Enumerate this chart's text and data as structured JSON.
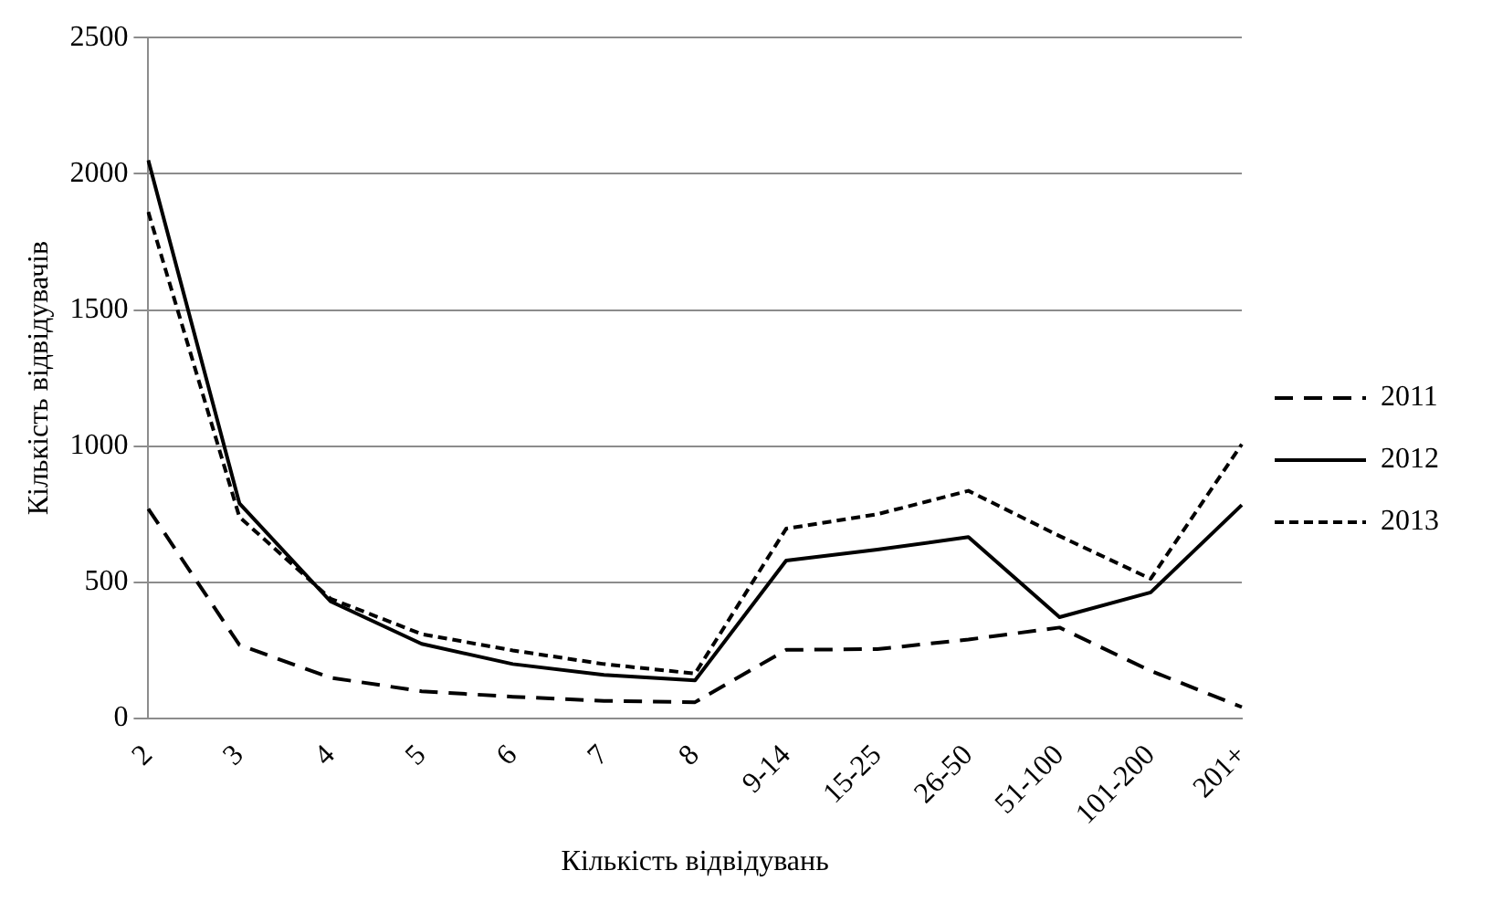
{
  "chart_data": {
    "type": "line",
    "xlabel": "Кількість відвідувань",
    "ylabel": "Кількість відвідувачів",
    "categories": [
      "2",
      "3",
      "4",
      "5",
      "6",
      "7",
      "8",
      "9-14",
      "15-25",
      "26-50",
      "51-100",
      "101-200",
      "201+"
    ],
    "series": [
      {
        "name": "2011",
        "color": "#000000",
        "line_style": "dashed",
        "values": [
          770,
          270,
          150,
          100,
          80,
          65,
          60,
          252,
          255,
          290,
          334,
          175,
          42
        ]
      },
      {
        "name": "2012",
        "color": "#000000",
        "line_style": "solid",
        "values": [
          2050,
          790,
          430,
          274,
          200,
          160,
          140,
          580,
          620,
          666,
          372,
          463,
          784
        ]
      },
      {
        "name": "2013",
        "color": "#000000",
        "line_style": "dotted",
        "values": [
          1860,
          740,
          440,
          310,
          250,
          200,
          165,
          697,
          750,
          836,
          670,
          513,
          1007
        ]
      }
    ],
    "ylim": [
      0,
      2500
    ],
    "yticks": [
      0,
      500,
      1000,
      1500,
      2000,
      2500
    ],
    "grid": "y",
    "legend": "right",
    "marker": "none"
  }
}
